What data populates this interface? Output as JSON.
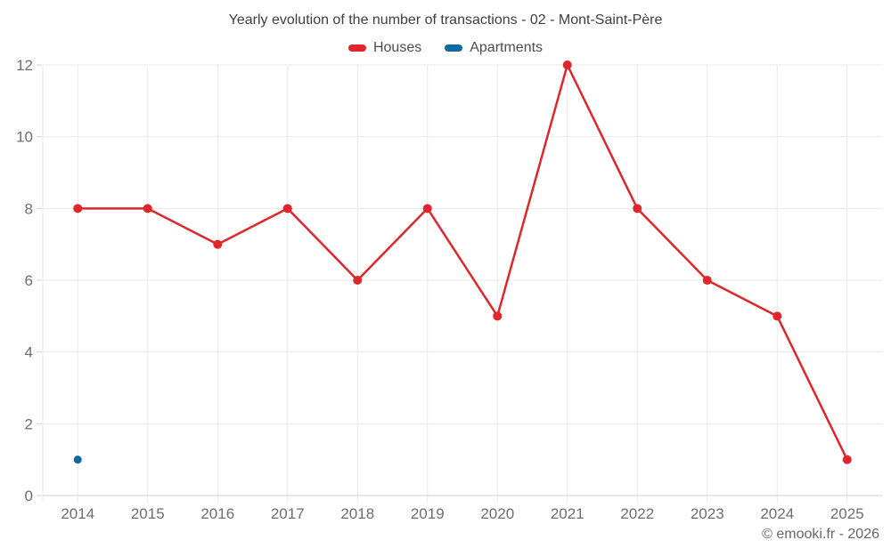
{
  "chart_data": {
    "type": "line",
    "title": "Yearly evolution of the number of transactions - 02 - Mont-Saint-Père",
    "categories": [
      "2014",
      "2015",
      "2016",
      "2017",
      "2018",
      "2019",
      "2020",
      "2021",
      "2022",
      "2023",
      "2024",
      "2025"
    ],
    "series": [
      {
        "name": "Houses",
        "color": "#e0262b",
        "marker_radius": 5,
        "values": [
          8,
          8,
          7,
          8,
          6,
          8,
          5,
          12,
          8,
          6,
          5,
          1
        ]
      },
      {
        "name": "Apartments",
        "color": "#0f6aa3",
        "marker_radius": 4.5,
        "values": [
          1,
          null,
          null,
          null,
          null,
          null,
          null,
          null,
          null,
          null,
          null,
          null
        ]
      }
    ],
    "xlabel": "",
    "ylabel": "",
    "ylim": [
      0,
      12
    ],
    "ytick_step": 2,
    "yticks": [
      0,
      2,
      4,
      6,
      8,
      10,
      12
    ],
    "grid": true,
    "legend_position": "top"
  },
  "footer": {
    "attribution": "© emooki.fr - 2026"
  },
  "colors": {
    "background": "#ffffff",
    "grid": "#e9e9e9",
    "axis_line": "#d0d0d0",
    "tick_label": "#6e6e6e",
    "title_text": "#3f3f3f",
    "legend_text": "#4d4d4d",
    "attribution_text": "#666666"
  }
}
